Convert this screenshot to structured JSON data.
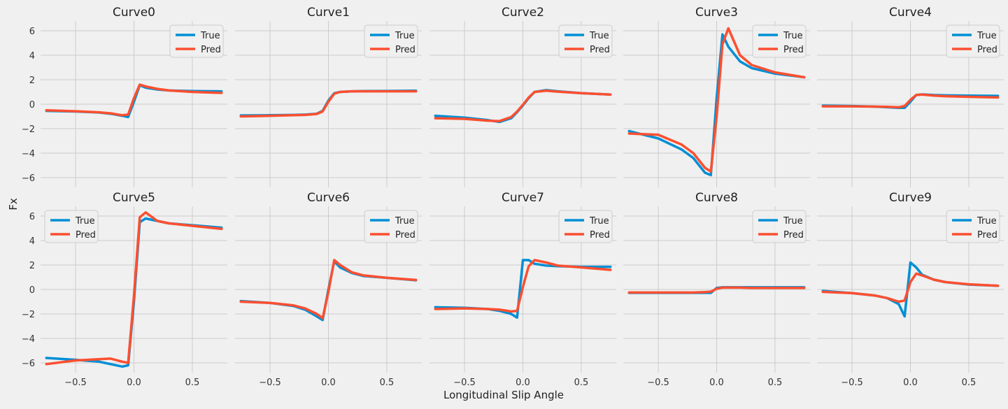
{
  "figure": {
    "xlabel": "Longitudinal Slip Angle",
    "ylabel": "Fx"
  },
  "colors": {
    "true": "#008fd5",
    "pred": "#fc4f30",
    "background": "#f0f0f0",
    "grid": "#cbcbcb"
  },
  "chart_data": {
    "type": "line",
    "layout": "2x5 subplots, shared axes",
    "xlim": [
      -0.8,
      0.8
    ],
    "ylim": [
      -6.8,
      6.8
    ],
    "xticks": [
      -0.5,
      0.0,
      0.5
    ],
    "xtick_labels": [
      "−0.5",
      "0.0",
      "0.5"
    ],
    "yticks": [
      -6,
      -4,
      -2,
      0,
      2,
      4,
      6
    ],
    "ytick_labels": [
      "−6",
      "−4",
      "−2",
      "0",
      "2",
      "4",
      "6"
    ],
    "grid": true,
    "series_names": [
      "True",
      "Pred"
    ],
    "x": [
      -0.75,
      -0.5,
      -0.3,
      -0.2,
      -0.1,
      -0.05,
      0,
      0.05,
      0.1,
      0.2,
      0.3,
      0.5,
      0.75
    ],
    "subplots": [
      {
        "title": "Curve0",
        "legend": "top-right",
        "series": [
          {
            "name": "True",
            "values": [
              -0.55,
              -0.6,
              -0.68,
              -0.78,
              -0.95,
              -1.05,
              0.2,
              1.55,
              1.35,
              1.2,
              1.12,
              1.07,
              1.05
            ]
          },
          {
            "name": "Pred",
            "values": [
              -0.5,
              -0.58,
              -0.66,
              -0.75,
              -0.9,
              -0.85,
              0.5,
              1.6,
              1.45,
              1.25,
              1.12,
              1.0,
              0.92
            ]
          }
        ]
      },
      {
        "title": "Curve1",
        "legend": "top-right",
        "series": [
          {
            "name": "True",
            "values": [
              -0.92,
              -0.9,
              -0.88,
              -0.85,
              -0.78,
              -0.55,
              0.3,
              0.9,
              1.0,
              1.05,
              1.07,
              1.08,
              1.1
            ]
          },
          {
            "name": "Pred",
            "values": [
              -1.0,
              -0.95,
              -0.9,
              -0.88,
              -0.8,
              -0.6,
              0.2,
              0.85,
              1.0,
              1.05,
              1.05,
              1.05,
              1.05
            ]
          }
        ]
      },
      {
        "title": "Curve2",
        "legend": "top-right",
        "series": [
          {
            "name": "True",
            "values": [
              -0.95,
              -1.1,
              -1.3,
              -1.45,
              -1.15,
              -0.65,
              -0.1,
              0.5,
              1.0,
              1.15,
              1.05,
              0.9,
              0.78
            ]
          },
          {
            "name": "Pred",
            "values": [
              -1.15,
              -1.2,
              -1.35,
              -1.38,
              -1.05,
              -0.6,
              -0.05,
              0.55,
              1.0,
              1.1,
              1.02,
              0.9,
              0.78
            ]
          }
        ]
      },
      {
        "title": "Curve3",
        "legend": "top-right",
        "series": [
          {
            "name": "True",
            "values": [
              -2.2,
              -2.8,
              -3.7,
              -4.4,
              -5.6,
              -5.8,
              0.5,
              5.7,
              4.7,
              3.5,
              2.95,
              2.5,
              2.2
            ]
          },
          {
            "name": "Pred",
            "values": [
              -2.4,
              -2.5,
              -3.3,
              -4.0,
              -5.2,
              -5.5,
              -1.0,
              4.9,
              6.2,
              4.0,
              3.2,
              2.6,
              2.2
            ]
          }
        ]
      },
      {
        "title": "Curve4",
        "legend": "top-right",
        "series": [
          {
            "name": "True",
            "values": [
              -0.12,
              -0.15,
              -0.2,
              -0.25,
              -0.3,
              -0.3,
              0.2,
              0.75,
              0.8,
              0.75,
              0.72,
              0.7,
              0.68
            ]
          },
          {
            "name": "Pred",
            "values": [
              -0.18,
              -0.18,
              -0.2,
              -0.22,
              -0.25,
              -0.15,
              0.35,
              0.75,
              0.78,
              0.7,
              0.65,
              0.6,
              0.55
            ]
          }
        ]
      },
      {
        "title": "Curve5",
        "legend": "top-left",
        "series": [
          {
            "name": "True",
            "values": [
              -5.6,
              -5.75,
              -5.9,
              -6.1,
              -6.3,
              -6.2,
              -1.0,
              5.5,
              5.8,
              5.6,
              5.4,
              5.25,
              5.05
            ]
          },
          {
            "name": "Pred",
            "values": [
              -6.1,
              -5.8,
              -5.7,
              -5.65,
              -5.9,
              -6.0,
              -0.5,
              5.9,
              6.3,
              5.6,
              5.4,
              5.2,
              4.95
            ]
          }
        ]
      },
      {
        "title": "Curve6",
        "legend": "top-right",
        "series": [
          {
            "name": "True",
            "values": [
              -0.95,
              -1.1,
              -1.35,
              -1.65,
              -2.2,
              -2.5,
              0.0,
              2.3,
              1.8,
              1.35,
              1.1,
              0.95,
              0.75
            ]
          },
          {
            "name": "Pred",
            "values": [
              -1.0,
              -1.1,
              -1.3,
              -1.55,
              -2.0,
              -2.35,
              -0.2,
              2.4,
              2.0,
              1.4,
              1.15,
              0.95,
              0.78
            ]
          }
        ]
      },
      {
        "title": "Curve7",
        "legend": "top-right",
        "series": [
          {
            "name": "True",
            "values": [
              -1.45,
              -1.5,
              -1.6,
              -1.75,
              -2.0,
              -2.3,
              2.4,
              2.4,
              2.1,
              1.95,
              1.9,
              1.85,
              1.85
            ]
          },
          {
            "name": "Pred",
            "values": [
              -1.6,
              -1.55,
              -1.6,
              -1.65,
              -1.8,
              -1.75,
              0.2,
              1.9,
              2.4,
              2.2,
              1.95,
              1.8,
              1.6
            ]
          }
        ]
      },
      {
        "title": "Curve8",
        "legend": "top-right",
        "series": [
          {
            "name": "True",
            "values": [
              -0.28,
              -0.28,
              -0.28,
              -0.28,
              -0.28,
              -0.28,
              0.12,
              0.18,
              0.18,
              0.18,
              0.18,
              0.18,
              0.18
            ]
          },
          {
            "name": "Pred",
            "values": [
              -0.25,
              -0.25,
              -0.25,
              -0.25,
              -0.22,
              -0.18,
              0.05,
              0.15,
              0.15,
              0.15,
              0.12,
              0.12,
              0.12
            ]
          }
        ]
      },
      {
        "title": "Curve9",
        "legend": "top-right",
        "series": [
          {
            "name": "True",
            "values": [
              -0.12,
              -0.3,
              -0.5,
              -0.7,
              -1.2,
              -2.2,
              2.2,
              1.8,
              1.2,
              0.8,
              0.6,
              0.4,
              0.3
            ]
          },
          {
            "name": "Pred",
            "values": [
              -0.2,
              -0.3,
              -0.5,
              -0.7,
              -1.0,
              -0.9,
              0.6,
              1.3,
              1.15,
              0.8,
              0.6,
              0.42,
              0.3
            ]
          }
        ]
      }
    ]
  }
}
